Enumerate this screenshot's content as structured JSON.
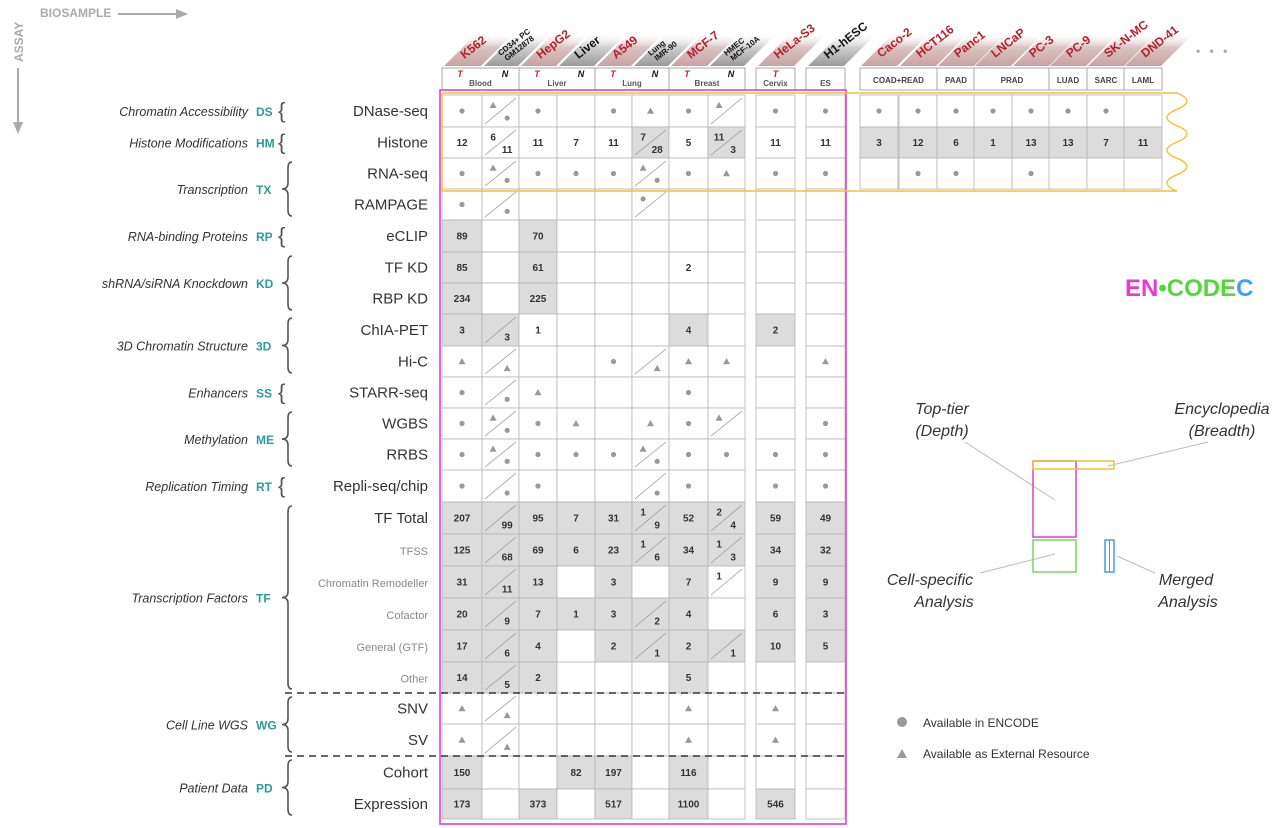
{
  "axis_labels": {
    "biosample": "BIOSAMPLE",
    "assay": "ASSAY"
  },
  "brand": {
    "en": "EN",
    "dot": "•",
    "code": "CODE",
    "c": "C",
    "colors": {
      "en": "#e43bd8",
      "code": "#55d63b",
      "c": "#3aa3ea"
    }
  },
  "main_cells": [
    {
      "name": "K562",
      "type": "tumor"
    },
    {
      "name": "CD34+ PC\nGM12878",
      "type": "normal"
    },
    {
      "name": "HepG2",
      "type": "tumor"
    },
    {
      "name": "Liver",
      "type": "normal"
    },
    {
      "name": "A549",
      "type": "tumor"
    },
    {
      "name": "Lung\nIMR-90",
      "type": "normal"
    },
    {
      "name": "MCF-7",
      "type": "tumor"
    },
    {
      "name": "HMEC\nMCF-10A",
      "type": "normal"
    },
    {
      "name": "HeLa-S3",
      "type": "tumor"
    },
    {
      "name": "H1-hESC",
      "type": "normal"
    }
  ],
  "tissue_groups": [
    {
      "t": "T",
      "n": "N",
      "label": "Blood"
    },
    {
      "t": "T",
      "n": "N",
      "label": "Liver"
    },
    {
      "t": "T",
      "n": "N",
      "label": "Lung"
    },
    {
      "t": "T",
      "n": "N",
      "label": "Breast"
    },
    {
      "t": "T",
      "n": "",
      "label": "Cervix"
    },
    {
      "t": "",
      "n": "",
      "label": "ES"
    }
  ],
  "extra_cells": [
    "Caco-2",
    "HCT116",
    "Panc1",
    "LNCaP",
    "PC-3",
    "PC-9",
    "SK-N-MC",
    "DND-41"
  ],
  "extra_groups": [
    "COAD+READ",
    "PAAD",
    "PRAD",
    "LUAD",
    "SARC",
    "LAML"
  ],
  "ellipsis": "• • •",
  "categories": [
    {
      "name": "Chromatin Accessibility",
      "code": "DS",
      "rows": [
        0,
        0
      ]
    },
    {
      "name": "Histone Modifications",
      "code": "HM",
      "rows": [
        1,
        1
      ]
    },
    {
      "name": "Transcription",
      "code": "TX",
      "rows": [
        2,
        3
      ]
    },
    {
      "name": "RNA-binding Proteins",
      "code": "RP",
      "rows": [
        4,
        4
      ]
    },
    {
      "name": "shRNA/siRNA Knockdown",
      "code": "KD",
      "rows": [
        5,
        6
      ]
    },
    {
      "name": "3D Chromatin Structure",
      "code": "3D",
      "rows": [
        7,
        8
      ]
    },
    {
      "name": "Enhancers",
      "code": "SS",
      "rows": [
        9,
        9
      ]
    },
    {
      "name": "Methylation",
      "code": "ME",
      "rows": [
        10,
        11
      ]
    },
    {
      "name": "Replication Timing",
      "code": "RT",
      "rows": [
        12,
        12
      ]
    },
    {
      "name": "Transcription Factors",
      "code": "TF",
      "rows": [
        13,
        18
      ]
    },
    {
      "name": "Cell Line WGS",
      "code": "WG",
      "rows": [
        19,
        20
      ]
    },
    {
      "name": "Patient Data",
      "code": "PD",
      "rows": [
        21,
        22
      ]
    }
  ],
  "rows": [
    {
      "label": "DNase-seq",
      "small": false,
      "cells": [
        "•",
        "▲/•",
        "•",
        "",
        "•",
        "▲",
        "•",
        "▲/",
        "•",
        "•"
      ],
      "extra": [
        "•",
        "•",
        "•",
        "•",
        "•",
        "•",
        "•",
        ""
      ]
    },
    {
      "label": "Histone",
      "small": false,
      "cells": [
        "12",
        "6/11",
        "11",
        "7",
        "11",
        "7/28",
        "5",
        "11/3",
        "11",
        "11"
      ],
      "extra": [
        "3",
        "12",
        "6",
        "1",
        "13",
        "13",
        "7",
        "11"
      ]
    },
    {
      "label": "RNA-seq",
      "small": false,
      "cells": [
        "•",
        "▲/•",
        "•",
        "•",
        "•",
        "▲/•",
        "•",
        "▲",
        "•",
        "•"
      ],
      "extra": [
        "",
        "•",
        "•",
        "",
        "•",
        "",
        "",
        ""
      ]
    },
    {
      "label": "RAMPAGE",
      "small": false,
      "cells": [
        "•",
        "/•",
        "",
        "",
        "",
        "•/",
        "",
        "",
        "",
        ""
      ]
    },
    {
      "label": "eCLIP",
      "small": false,
      "cells": [
        "89",
        "",
        "70",
        "",
        "",
        "",
        "",
        "",
        "",
        ""
      ]
    },
    {
      "label": "TF KD",
      "small": false,
      "cells": [
        "85",
        "",
        "61",
        "",
        "",
        "",
        "2",
        "",
        "",
        ""
      ]
    },
    {
      "label": "RBP KD",
      "small": false,
      "cells": [
        "234",
        "",
        "225",
        "",
        "",
        "",
        "",
        "",
        "",
        ""
      ]
    },
    {
      "label": "ChIA-PET",
      "small": false,
      "cells": [
        "3",
        "/3",
        "1",
        "",
        "",
        "",
        "4",
        "",
        "2",
        ""
      ]
    },
    {
      "label": "Hi-C",
      "small": false,
      "cells": [
        "▲",
        "/▲",
        "",
        "",
        "•",
        "/▲",
        "▲",
        "▲",
        "",
        "▲"
      ]
    },
    {
      "label": "STARR-seq",
      "small": false,
      "cells": [
        "•",
        "/•",
        "▲",
        "",
        "",
        "",
        "•",
        "",
        "",
        ""
      ]
    },
    {
      "label": "WGBS",
      "small": false,
      "cells": [
        "•",
        "▲/•",
        "•",
        "▲",
        "",
        "▲",
        "•",
        "▲/",
        "",
        "•"
      ]
    },
    {
      "label": "RRBS",
      "small": false,
      "cells": [
        "•",
        "▲/•",
        "•",
        "•",
        "•",
        "▲/•",
        "•",
        "•",
        "•",
        "•"
      ]
    },
    {
      "label": "Repli-seq/chip",
      "small": false,
      "cells": [
        "•",
        "/•",
        "•",
        "",
        "",
        "/•",
        "•",
        "",
        "•",
        "•"
      ]
    },
    {
      "label": "TF Total",
      "small": false,
      "cells": [
        "207",
        "/99",
        "95",
        "7",
        "31",
        "1/9",
        "52",
        "2/4",
        "59",
        "49"
      ]
    },
    {
      "label": "TFSS",
      "small": true,
      "cells": [
        "125",
        "/68",
        "69",
        "6",
        "23",
        "1/6",
        "34",
        "1/3",
        "34",
        "32"
      ]
    },
    {
      "label": "Chromatin Remodeller",
      "small": true,
      "cells": [
        "31",
        "/11",
        "13",
        "",
        "3",
        "",
        "7",
        "1/",
        "9",
        "9"
      ]
    },
    {
      "label": "Cofactor",
      "small": true,
      "cells": [
        "20",
        "/9",
        "7",
        "1",
        "3",
        "/2",
        "4",
        "",
        "6",
        "3"
      ]
    },
    {
      "label": "General (GTF)",
      "small": true,
      "cells": [
        "17",
        "/6",
        "4",
        "",
        "2",
        "/1",
        "2",
        "/1",
        "10",
        "5"
      ]
    },
    {
      "label": "Other",
      "small": true,
      "cells": [
        "14",
        "/5",
        "2",
        "",
        "",
        "",
        "5",
        "",
        "",
        ""
      ]
    },
    {
      "label": "SNV",
      "small": false,
      "cells": [
        "▲",
        "/▲",
        "",
        "",
        "",
        "",
        "▲",
        "",
        "▲",
        ""
      ]
    },
    {
      "label": "SV",
      "small": false,
      "cells": [
        "▲",
        "/▲",
        "",
        "",
        "",
        "",
        "▲",
        "",
        "▲",
        ""
      ]
    },
    {
      "label": "Cohort",
      "small": false,
      "cells": [
        "150",
        "",
        "",
        "82",
        "197",
        "",
        "116",
        "",
        "",
        ""
      ]
    },
    {
      "label": "Expression",
      "small": false,
      "cells": [
        "173",
        "",
        "373",
        "",
        "517",
        "",
        "1100",
        "",
        "546",
        ""
      ]
    }
  ],
  "gray_cells": [
    "1.5",
    "1.7",
    "4.0",
    "4.2",
    "5.0",
    "5.2",
    "6.0",
    "6.2",
    "7.0",
    "7.1",
    "7.6",
    "7.8",
    "13.0",
    "13.1",
    "13.2",
    "13.3",
    "13.4",
    "13.5",
    "13.6",
    "13.7",
    "13.8",
    "13.9",
    "14.0",
    "14.1",
    "14.2",
    "14.3",
    "14.4",
    "14.5",
    "14.6",
    "14.7",
    "14.8",
    "14.9",
    "15.0",
    "15.1",
    "15.2",
    "15.4",
    "15.6",
    "15.8",
    "15.9",
    "16.0",
    "16.1",
    "16.2",
    "16.3",
    "16.4",
    "16.5",
    "16.6",
    "16.8",
    "16.9",
    "17.0",
    "17.1",
    "17.2",
    "17.4",
    "17.5",
    "17.6",
    "17.7",
    "17.8",
    "17.9",
    "18.0",
    "18.1",
    "18.2",
    "18.6",
    "21.0",
    "21.3",
    "21.4",
    "21.6",
    "22.0",
    "22.2",
    "22.4",
    "22.6",
    "22.8"
  ],
  "extra_gray": [
    1
  ],
  "schematic": {
    "top_tier": "Top-tier\n(Depth)",
    "encyclopedia": "Encyclopedia\n(Breadth)",
    "cell_specific": "Cell-specific\nAnalysis",
    "merged": "Merged\nAnalysis",
    "colors": {
      "top": "#e43bd8",
      "encyc": "#f2c12e",
      "cell": "#7ad65c",
      "merged": "#3aa3ea"
    }
  },
  "legend": [
    {
      "symbol": "•",
      "label": "Available in ENCODE"
    },
    {
      "symbol": "▲",
      "label": "Available as External Resource"
    }
  ]
}
